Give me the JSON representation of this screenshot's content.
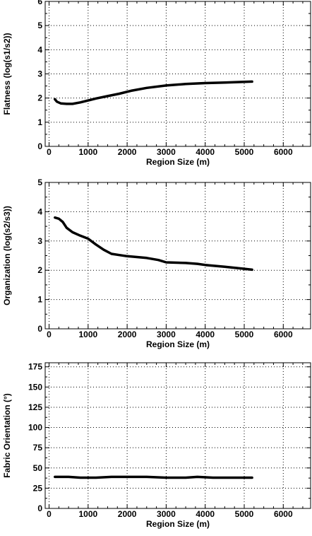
{
  "chart_data": [
    {
      "type": "line",
      "xlabel": "Region Size (m)",
      "ylabel": "Flatness (log(s1/s2))",
      "xlim": [
        -100,
        6700
      ],
      "ylim": [
        0,
        6
      ],
      "xticks": [
        0,
        1000,
        2000,
        3000,
        4000,
        5000,
        6000
      ],
      "yticks": [
        0,
        1,
        2,
        3,
        4,
        5,
        6
      ],
      "grid": true,
      "x": [
        150,
        200,
        300,
        450,
        600,
        800,
        1000,
        1200,
        1500,
        1800,
        2100,
        2500,
        3000,
        3500,
        4000,
        4500,
        5000,
        5200
      ],
      "y": [
        1.95,
        1.85,
        1.78,
        1.76,
        1.76,
        1.82,
        1.9,
        1.98,
        2.08,
        2.18,
        2.3,
        2.42,
        2.52,
        2.58,
        2.62,
        2.64,
        2.67,
        2.68
      ]
    },
    {
      "type": "line",
      "xlabel": "Region Size (m)",
      "ylabel": "Organization (log(s2/s3))",
      "xlim": [
        -100,
        6700
      ],
      "ylim": [
        0,
        5
      ],
      "xticks": [
        0,
        1000,
        2000,
        3000,
        4000,
        5000,
        6000
      ],
      "yticks": [
        0,
        1,
        2,
        3,
        4,
        5
      ],
      "grid": true,
      "x": [
        150,
        250,
        350,
        450,
        600,
        800,
        1000,
        1200,
        1400,
        1600,
        1800,
        2000,
        2500,
        2800,
        3000,
        3500,
        3800,
        4000,
        4500,
        5000,
        5200
      ],
      "y": [
        3.8,
        3.76,
        3.65,
        3.45,
        3.3,
        3.18,
        3.08,
        2.88,
        2.7,
        2.56,
        2.52,
        2.48,
        2.42,
        2.35,
        2.27,
        2.25,
        2.22,
        2.18,
        2.12,
        2.05,
        2.02
      ]
    },
    {
      "type": "line",
      "xlabel": "Region Size (m)",
      "ylabel": "Fabric Orientation (°)",
      "xlim": [
        -100,
        6700
      ],
      "ylim": [
        0,
        180
      ],
      "xticks": [
        0,
        1000,
        2000,
        3000,
        4000,
        5000,
        6000
      ],
      "yticks": [
        0,
        25,
        50,
        75,
        100,
        125,
        150,
        175
      ],
      "grid": true,
      "x": [
        150,
        500,
        800,
        1200,
        1600,
        2000,
        2500,
        3000,
        3500,
        3800,
        4200,
        5200
      ],
      "y": [
        39,
        39,
        38,
        38,
        39,
        39,
        39,
        38,
        38,
        39,
        38,
        38
      ]
    }
  ]
}
